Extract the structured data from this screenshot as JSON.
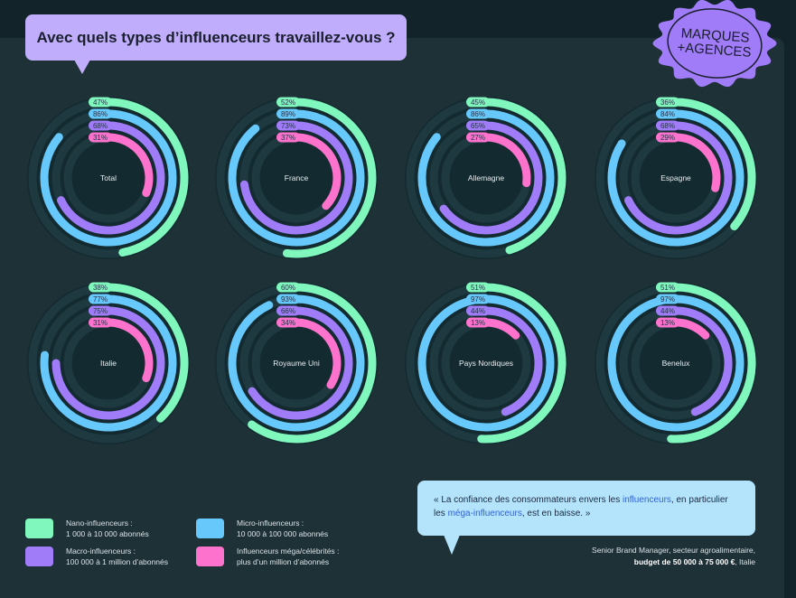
{
  "title": "Avec quels types d’influenceurs travaillez-vous ?",
  "badge": {
    "line1": "MARQUES",
    "line2": "+AGENCES"
  },
  "colors": {
    "nano": "#80f7bd",
    "micro": "#66c8fb",
    "macro": "#a07cf8",
    "mega": "#fc72cc",
    "track": "#173036",
    "title_bg": "#c0aefc",
    "quote_bg": "#b4e4fc"
  },
  "chart_data": {
    "type": "radial-bar",
    "series_order": [
      "Nano-influenceurs",
      "Micro-influenceurs",
      "Macro-influenceurs",
      "Influenceurs méga/célébrités"
    ],
    "charts": [
      {
        "label": "Total",
        "values": [
          47,
          86,
          68,
          31
        ]
      },
      {
        "label": "France",
        "values": [
          52,
          89,
          73,
          37
        ]
      },
      {
        "label": "Allemagne",
        "values": [
          45,
          86,
          65,
          27
        ]
      },
      {
        "label": "Espagne",
        "values": [
          36,
          84,
          68,
          29
        ]
      },
      {
        "label": "Italie",
        "values": [
          38,
          77,
          75,
          31
        ]
      },
      {
        "label": "Royaume Uni",
        "values": [
          60,
          93,
          66,
          34
        ]
      },
      {
        "label": "Pays Nordiques",
        "values": [
          51,
          97,
          44,
          13
        ]
      },
      {
        "label": "Benelux",
        "values": [
          51,
          97,
          44,
          13
        ]
      }
    ]
  },
  "legend": [
    {
      "name": "Nano-influenceurs :",
      "desc": "1 000 à 10 000 abonnés",
      "color": "#80f7bd"
    },
    {
      "name": "Micro-influenceurs :",
      "desc": " 10 000 à 100 000 abonnés",
      "color": "#66c8fb"
    },
    {
      "name": "Macro-influenceurs :",
      "desc": "100 000 à 1 million d’abonnés",
      "color": "#a07cf8"
    },
    {
      "name": "Influenceurs méga/célébrités :",
      "desc": "plus d’un million d’abonnés",
      "color": "#fc72cc"
    }
  ],
  "quote": {
    "p1": "« La confiance des consommateurs envers les ",
    "h1": "influenceurs",
    "p2": ", en particulier les ",
    "h2": "méga-influenceurs",
    "p3": ", est en baisse. »"
  },
  "attribution": {
    "line1": "Senior Brand Manager, secteur agroalimentaire,",
    "budget": "budget de 50 000 à 75 000 €",
    "country": ", Italie"
  }
}
